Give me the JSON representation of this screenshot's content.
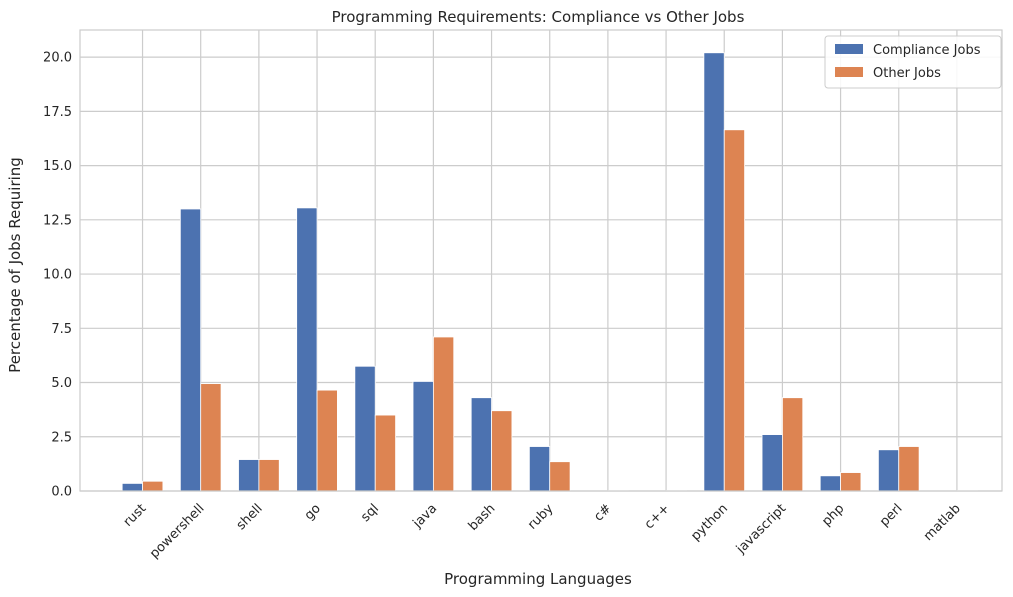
{
  "chart_data": {
    "type": "bar",
    "title": "Programming Requirements: Compliance vs Other Jobs",
    "xlabel": "Programming Languages",
    "ylabel": "Percentage of Jobs Requiring",
    "categories": [
      "rust",
      "powershell",
      "shell",
      "go",
      "sql",
      "java",
      "bash",
      "ruby",
      "c#",
      "c++",
      "python",
      "javascript",
      "php",
      "perl",
      "matlab"
    ],
    "series": [
      {
        "name": "Compliance Jobs",
        "color": "#4c72b0",
        "values": [
          0.35,
          13.0,
          1.45,
          13.05,
          5.75,
          5.05,
          4.3,
          2.05,
          0.0,
          0.0,
          20.2,
          2.6,
          0.7,
          1.9,
          0.0
        ]
      },
      {
        "name": "Other Jobs",
        "color": "#dd8452",
        "values": [
          0.45,
          4.95,
          1.45,
          4.65,
          3.5,
          7.1,
          3.7,
          1.35,
          0.02,
          0.02,
          16.65,
          4.3,
          0.85,
          2.05,
          0.02
        ]
      }
    ],
    "ylim": [
      0,
      21.25
    ],
    "yticks": [
      0.0,
      2.5,
      5.0,
      7.5,
      10.0,
      12.5,
      15.0,
      17.5,
      20.0
    ],
    "ytick_labels": [
      "0.0",
      "2.5",
      "5.0",
      "7.5",
      "10.0",
      "12.5",
      "15.0",
      "17.5",
      "20.0"
    ],
    "grid": true,
    "legend_position": "top-right"
  }
}
